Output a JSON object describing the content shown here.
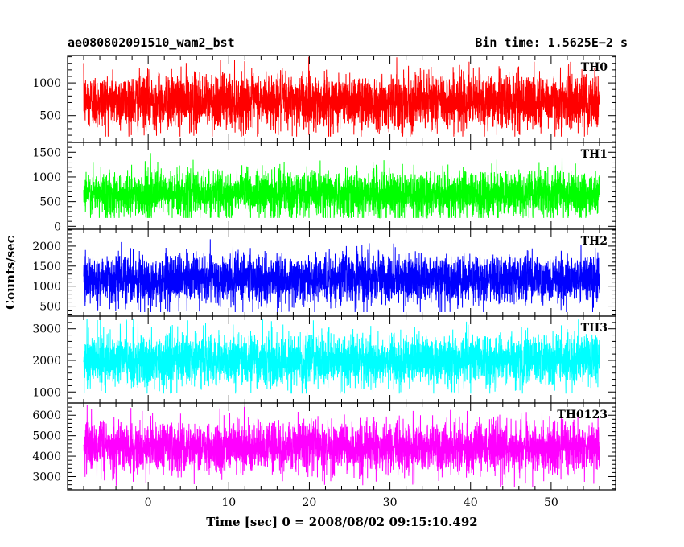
{
  "header": {
    "title": "ae080802091510_wam2_bst",
    "bin_time": "Bin time: 1.5625E−2 s"
  },
  "axes": {
    "ylabel": "Counts/sec",
    "xlabel": "Time [sec] 0 = 2008/08/02 09:15:10.492"
  },
  "chart_data": [
    {
      "type": "line",
      "name": "TH0",
      "color": "#ff0000",
      "x_range": [
        -8,
        56
      ],
      "xlim": [
        -10,
        58
      ],
      "ylim": [
        90,
        1420
      ],
      "baseline": 720,
      "spread": 210,
      "min": 180,
      "max": 1400,
      "yticks": [
        500,
        1000
      ],
      "xticks": [
        0,
        10,
        20,
        30,
        40,
        50
      ]
    },
    {
      "type": "line",
      "name": "TH1",
      "color": "#00ff00",
      "x_range": [
        -8,
        56
      ],
      "xlim": [
        -10,
        58
      ],
      "ylim": [
        -60,
        1700
      ],
      "baseline": 650,
      "spread": 230,
      "min": 170,
      "max": 1600,
      "yticks": [
        0,
        500,
        1000,
        1500
      ],
      "xticks": [
        0,
        10,
        20,
        30,
        40,
        50
      ]
    },
    {
      "type": "line",
      "name": "TH2",
      "color": "#0000ff",
      "x_range": [
        -8,
        56
      ],
      "xlim": [
        -10,
        58
      ],
      "ylim": [
        250,
        2420
      ],
      "baseline": 1180,
      "spread": 300,
      "min": 350,
      "max": 2300,
      "yticks": [
        500,
        1000,
        1500,
        2000
      ],
      "xticks": [
        0,
        10,
        20,
        30,
        40,
        50
      ]
    },
    {
      "type": "line",
      "name": "TH3",
      "color": "#00ffff",
      "x_range": [
        -8,
        56
      ],
      "xlim": [
        -10,
        58
      ],
      "ylim": [
        650,
        3400
      ],
      "baseline": 2000,
      "spread": 400,
      "min": 950,
      "max": 3300,
      "yticks": [
        1000,
        2000,
        3000
      ],
      "xticks": [
        0,
        10,
        20,
        30,
        40,
        50
      ]
    },
    {
      "type": "line",
      "name": "TH0123",
      "color": "#ff00ff",
      "x_range": [
        -8,
        56
      ],
      "xlim": [
        -10,
        58
      ],
      "ylim": [
        2350,
        6600
      ],
      "baseline": 4450,
      "spread": 600,
      "min": 2500,
      "max": 6500,
      "yticks": [
        3000,
        4000,
        5000,
        6000
      ],
      "xticks": [
        0,
        10,
        20,
        30,
        40,
        50
      ]
    }
  ]
}
